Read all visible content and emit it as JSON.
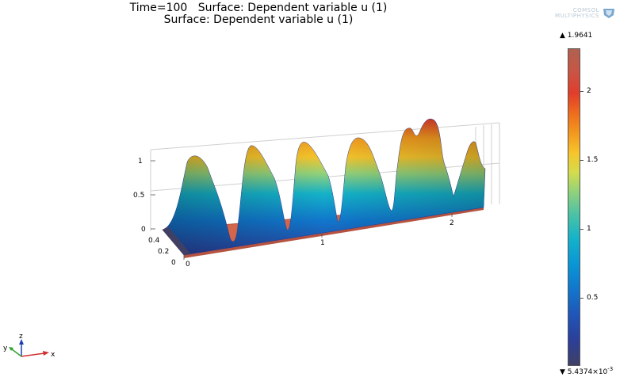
{
  "header": {
    "title_line1": "Time=100   Surface: Dependent variable u (1)",
    "title_line2": "Surface: Dependent variable u (1)"
  },
  "logo": {
    "text_line1": "COMSOL",
    "text_line2": "MULTIPHYSICS"
  },
  "colorbar": {
    "max_label": "1.9641",
    "min_label": "5.4374×10",
    "min_exponent": "-3",
    "ticks": [
      "2",
      "1.5",
      "1",
      "0.5"
    ]
  },
  "plot": {
    "z_ticks": [
      "1",
      "0.5",
      "0"
    ],
    "y_ticks": [
      "0.4",
      "0.2",
      "0"
    ],
    "x_ticks": [
      "0",
      "1",
      "2"
    ]
  },
  "axis_triad": {
    "x": "x",
    "y": "y",
    "z": "z"
  },
  "colors": {
    "slab": "#d3654a",
    "colorbar_top": "#b0614f",
    "colorbar_bottom": "#404065"
  }
}
